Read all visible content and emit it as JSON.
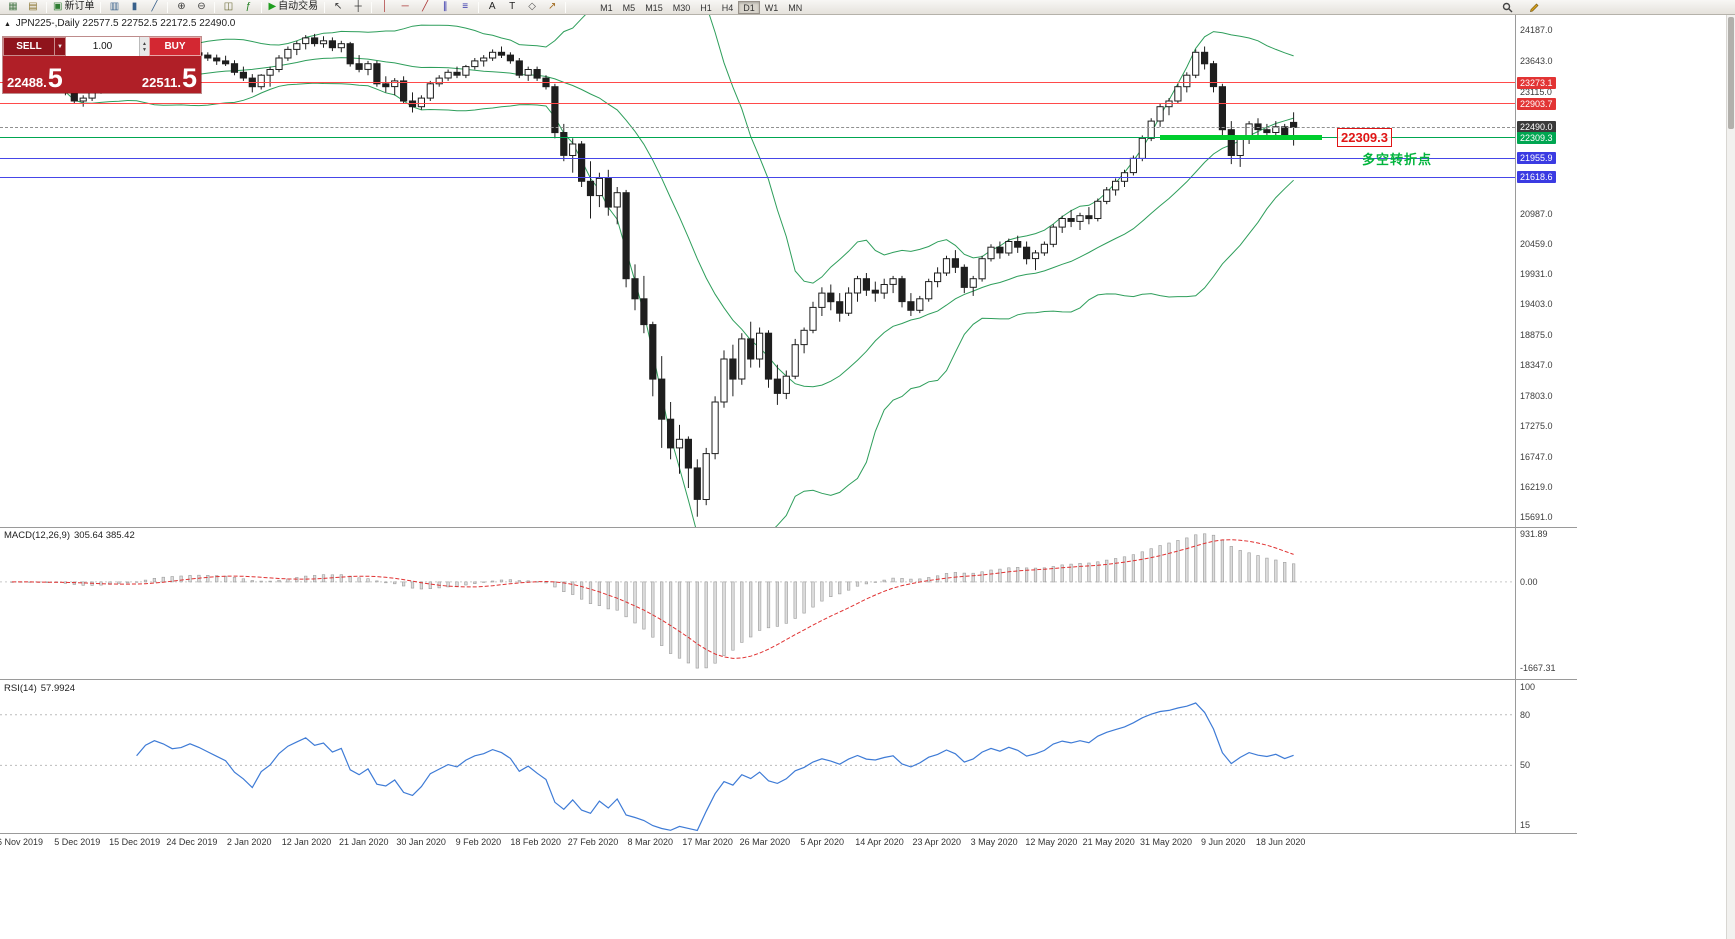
{
  "toolbar": {
    "items": [
      {
        "name": "new-chart-icon",
        "glyph": "▦",
        "color": "#4f7d4f"
      },
      {
        "name": "profiles-icon",
        "glyph": "▤",
        "color": "#8a7430"
      },
      {
        "name": "separator"
      },
      {
        "name": "new-order-icon",
        "glyph": "▣",
        "color": "#2e7d32",
        "label": "新订单"
      },
      {
        "name": "separator"
      },
      {
        "name": "bar-chart-icon",
        "glyph": "▥",
        "color": "#38608a"
      },
      {
        "name": "candle-chart-icon",
        "glyph": "▮",
        "color": "#38608a"
      },
      {
        "name": "line-chart-icon",
        "glyph": "╱",
        "color": "#38608a"
      },
      {
        "name": "separator"
      },
      {
        "name": "zoom-in-icon",
        "glyph": "⊕",
        "color": "#3c3c3c"
      },
      {
        "name": "zoom-out-icon",
        "glyph": "⊖",
        "color": "#3c3c3c"
      },
      {
        "name": "separator"
      },
      {
        "name": "tile-windows-icon",
        "glyph": "◫",
        "color": "#6a6a35"
      },
      {
        "name": "indicators-icon",
        "glyph": "ƒ",
        "color": "#1f7d1f"
      },
      {
        "name": "separator"
      },
      {
        "name": "auto-trading-icon",
        "glyph": "▶",
        "color": "#1f9d1f",
        "label": "自动交易"
      },
      {
        "name": "separator"
      },
      {
        "name": "cursor-icon",
        "glyph": "↖",
        "color": "#333333"
      },
      {
        "name": "crosshair-icon",
        "glyph": "┼",
        "color": "#333333"
      },
      {
        "name": "separator"
      },
      {
        "name": "vertical-line-icon",
        "glyph": "│",
        "color": "#aa3333"
      },
      {
        "name": "horizontal-line-icon",
        "glyph": "─",
        "color": "#aa3333"
      },
      {
        "name": "trendline-icon",
        "glyph": "╱",
        "color": "#aa3333"
      },
      {
        "name": "channel-icon",
        "glyph": "∥",
        "color": "#3333aa"
      },
      {
        "name": "fibonacci-icon",
        "glyph": "≡",
        "color": "#3333aa"
      },
      {
        "name": "separator"
      },
      {
        "name": "text-icon",
        "glyph": "A",
        "color": "#222222"
      },
      {
        "name": "label-icon",
        "glyph": "T",
        "color": "#222222"
      },
      {
        "name": "shapes-icon",
        "glyph": "◇",
        "color": "#555555"
      },
      {
        "name": "arrows-icon",
        "glyph": "↗",
        "color": "#a06a1f"
      },
      {
        "name": "separator"
      }
    ],
    "timeframes": [
      "M1",
      "M5",
      "M15",
      "M30",
      "H1",
      "H4",
      "D1",
      "W1",
      "MN"
    ],
    "active_timeframe": "D1"
  },
  "trade_panel": {
    "sell_label": "SELL",
    "buy_label": "BUY",
    "volume": "1.00",
    "sell_price_main": "22488.",
    "sell_price_big": "5",
    "buy_price_main": "22511.",
    "buy_price_big": "5"
  },
  "chart": {
    "symbol_label": "JPN225-,Daily",
    "ohlc_text": "22577.5 22752.5 22172.5 22490.0",
    "colors": {
      "bollinger": "#2e9e5b",
      "bull_candle": "#ffffff",
      "bear_candle": "#1e1e1e",
      "resistance_line": "#ff4a4a",
      "support_line": "#4646e8",
      "pivot_line": "#00a651",
      "trend_segment": "#00ce2e"
    },
    "hlines": [
      {
        "value": 23273.1,
        "color": "#ff4a4a",
        "width": 1
      },
      {
        "value": 22903.7,
        "color": "#ff4a4a",
        "width": 1
      },
      {
        "value": 22490.0,
        "color": "#909090",
        "width": 1,
        "dashed": true
      },
      {
        "value": 22309.3,
        "color": "#00a651",
        "width": 1
      },
      {
        "value": 21955.9,
        "color": "#4646e8",
        "width": 1
      },
      {
        "value": 21618.6,
        "color": "#4646e8",
        "width": 1
      }
    ],
    "trend_segment": {
      "value": 22309.3,
      "color": "#00ce2e"
    },
    "annotation": {
      "price": "22309.3",
      "note": "多空转折点"
    },
    "badges": [
      {
        "value": 23273.1,
        "label": "23273.1",
        "type": "red"
      },
      {
        "value": 22903.7,
        "label": "22903.7",
        "type": "red"
      },
      {
        "value": 22490.0,
        "label": "22490.0",
        "type": "current"
      },
      {
        "value": 22309.3,
        "label": "22309.3",
        "type": "green"
      },
      {
        "value": 21955.9,
        "label": "21955.9",
        "type": "blue"
      },
      {
        "value": 21618.6,
        "label": "21618.6",
        "type": "blue"
      }
    ],
    "price_axis_labels": [
      "24187.0",
      "23643.0",
      "23115.0",
      "20987.0",
      "20459.0",
      "19931.0",
      "19403.0",
      "18875.0",
      "18347.0",
      "17803.0",
      "17275.0",
      "16747.0",
      "16219.0",
      "15691.0"
    ],
    "date_labels": [
      "6 Nov 2019",
      "5 Dec 2019",
      "15 Dec 2019",
      "24 Dec 2019",
      "2 Jan 2020",
      "12 Jan 2020",
      "21 Jan 2020",
      "30 Jan 2020",
      "9 Feb 2020",
      "18 Feb 2020",
      "27 Feb 2020",
      "8 Mar 2020",
      "17 Mar 2020",
      "26 Mar 2020",
      "5 Apr 2020",
      "14 Apr 2020",
      "23 Apr 2020",
      "3 May 2020",
      "12 May 2020",
      "21 May 2020",
      "31 May 2020",
      "9 Jun 2020",
      "18 Jun 2020"
    ]
  },
  "macd": {
    "label": "MACD(12,26,9)",
    "values": "305.64 385.42",
    "axis": [
      {
        "v": 931.89,
        "label": "931.89"
      },
      {
        "v": 0,
        "label": "0.00"
      },
      {
        "v": -1667.31,
        "label": "-1667.31"
      }
    ]
  },
  "rsi": {
    "label": "RSI(14)",
    "value": "57.9924",
    "levels": [
      80,
      50
    ],
    "axis": [
      {
        "v": 100,
        "label": "100"
      },
      {
        "v": 80,
        "label": "80"
      },
      {
        "v": 50,
        "label": "50"
      },
      {
        "v": 15,
        "label": "15"
      }
    ]
  },
  "chart_data": {
    "type": "candlestick",
    "symbol": "JPN225-",
    "timeframe": "Daily",
    "last_ohlc": {
      "open": 22577.5,
      "high": 22752.5,
      "low": 22172.5,
      "close": 22490.0
    },
    "price_range": [
      15520,
      24450
    ],
    "indicators": {
      "bollinger": [
        20,
        2
      ],
      "macd": [
        12,
        26,
        9
      ],
      "rsi": 14
    },
    "ohlc": [
      [
        23270,
        23390,
        23200,
        23350
      ],
      [
        23350,
        23450,
        23280,
        23380
      ],
      [
        23380,
        23420,
        23250,
        23290
      ],
      [
        23290,
        23350,
        23180,
        23240
      ],
      [
        23240,
        23320,
        23150,
        23290
      ],
      [
        23290,
        23400,
        23230,
        23350
      ],
      [
        23350,
        23380,
        23050,
        23100
      ],
      [
        23100,
        23180,
        22900,
        22950
      ],
      [
        22950,
        23050,
        22850,
        23000
      ],
      [
        23000,
        23150,
        22950,
        23110
      ],
      [
        23110,
        23250,
        23080,
        23200
      ],
      [
        23200,
        23350,
        23150,
        23300
      ],
      [
        23300,
        23450,
        23250,
        23400
      ],
      [
        23400,
        23480,
        23300,
        23360
      ],
      [
        23360,
        23550,
        23320,
        23500
      ],
      [
        23500,
        23750,
        23480,
        23700
      ],
      [
        23700,
        23850,
        23650,
        23800
      ],
      [
        23800,
        23870,
        23700,
        23760
      ],
      [
        23760,
        23820,
        23650,
        23700
      ],
      [
        23700,
        23780,
        23630,
        23720
      ],
      [
        23720,
        23830,
        23680,
        23790
      ],
      [
        23790,
        23850,
        23700,
        23750
      ],
      [
        23750,
        23800,
        23650,
        23700
      ],
      [
        23700,
        23760,
        23580,
        23650
      ],
      [
        23650,
        23740,
        23560,
        23600
      ],
      [
        23600,
        23660,
        23400,
        23450
      ],
      [
        23450,
        23550,
        23300,
        23350
      ],
      [
        23350,
        23420,
        23100,
        23200
      ],
      [
        23200,
        23420,
        23150,
        23400
      ],
      [
        23400,
        23550,
        23200,
        23500
      ],
      [
        23500,
        23750,
        23450,
        23700
      ],
      [
        23700,
        23900,
        23650,
        23850
      ],
      [
        23850,
        24000,
        23750,
        23950
      ],
      [
        23950,
        24100,
        23850,
        24050
      ],
      [
        24050,
        24120,
        23900,
        23950
      ],
      [
        23950,
        24080,
        23880,
        24000
      ],
      [
        24000,
        24060,
        23820,
        23880
      ],
      [
        23880,
        24000,
        23800,
        23950
      ],
      [
        23950,
        23980,
        23550,
        23600
      ],
      [
        23600,
        23750,
        23450,
        23500
      ],
      [
        23500,
        23650,
        23400,
        23600
      ],
      [
        23600,
        23650,
        23200,
        23250
      ],
      [
        23250,
        23380,
        23100,
        23200
      ],
      [
        23200,
        23350,
        23050,
        23300
      ],
      [
        23300,
        23380,
        22900,
        22950
      ],
      [
        22950,
        23100,
        22750,
        22850
      ],
      [
        22850,
        23050,
        22800,
        23000
      ],
      [
        23000,
        23300,
        22950,
        23250
      ],
      [
        23250,
        23400,
        23200,
        23350
      ],
      [
        23350,
        23500,
        23300,
        23450
      ],
      [
        23450,
        23550,
        23350,
        23400
      ],
      [
        23400,
        23580,
        23350,
        23550
      ],
      [
        23550,
        23700,
        23500,
        23650
      ],
      [
        23650,
        23750,
        23550,
        23700
      ],
      [
        23700,
        23850,
        23650,
        23800
      ],
      [
        23800,
        23900,
        23700,
        23750
      ],
      [
        23750,
        23800,
        23600,
        23650
      ],
      [
        23650,
        23700,
        23350,
        23400
      ],
      [
        23400,
        23550,
        23300,
        23500
      ],
      [
        23500,
        23550,
        23300,
        23350
      ],
      [
        23350,
        23400,
        23150,
        23200
      ],
      [
        23200,
        23250,
        22300,
        22400
      ],
      [
        22400,
        22550,
        21900,
        22000
      ],
      [
        22000,
        22300,
        21700,
        22200
      ],
      [
        22200,
        22250,
        21450,
        21550
      ],
      [
        21550,
        21900,
        20900,
        21300
      ],
      [
        21300,
        21700,
        21100,
        21600
      ],
      [
        21600,
        21750,
        20950,
        21100
      ],
      [
        21100,
        21450,
        20800,
        21350
      ],
      [
        21350,
        21400,
        19700,
        19850
      ],
      [
        19850,
        20100,
        19300,
        19500
      ],
      [
        19500,
        19900,
        18900,
        19050
      ],
      [
        19050,
        19100,
        17800,
        18100
      ],
      [
        18100,
        18500,
        16900,
        17400
      ],
      [
        17400,
        17700,
        16700,
        16900
      ],
      [
        16900,
        17300,
        16450,
        17050
      ],
      [
        17050,
        17100,
        16200,
        16550
      ],
      [
        16550,
        16700,
        15700,
        16000
      ],
      [
        16000,
        16900,
        15900,
        16800
      ],
      [
        16800,
        17800,
        16700,
        17700
      ],
      [
        17700,
        18600,
        17600,
        18450
      ],
      [
        18450,
        18700,
        17800,
        18100
      ],
      [
        18100,
        18900,
        18000,
        18800
      ],
      [
        18800,
        19100,
        18300,
        18450
      ],
      [
        18450,
        19000,
        18300,
        18900
      ],
      [
        18900,
        18950,
        17950,
        18100
      ],
      [
        18100,
        18350,
        17650,
        17850
      ],
      [
        17850,
        18250,
        17750,
        18150
      ],
      [
        18150,
        18800,
        18100,
        18700
      ],
      [
        18700,
        19000,
        18550,
        18950
      ],
      [
        18950,
        19450,
        18900,
        19350
      ],
      [
        19350,
        19700,
        19200,
        19600
      ],
      [
        19600,
        19750,
        19300,
        19450
      ],
      [
        19450,
        19600,
        19100,
        19250
      ],
      [
        19250,
        19700,
        19200,
        19600
      ],
      [
        19600,
        19900,
        19450,
        19850
      ],
      [
        19850,
        19950,
        19550,
        19650
      ],
      [
        19650,
        19800,
        19450,
        19600
      ],
      [
        19600,
        19850,
        19500,
        19750
      ],
      [
        19750,
        19900,
        19600,
        19850
      ],
      [
        19850,
        19900,
        19350,
        19450
      ],
      [
        19450,
        19600,
        19200,
        19300
      ],
      [
        19300,
        19550,
        19250,
        19500
      ],
      [
        19500,
        19850,
        19450,
        19800
      ],
      [
        19800,
        20050,
        19700,
        19950
      ],
      [
        19950,
        20250,
        19900,
        20200
      ],
      [
        20200,
        20350,
        19950,
        20050
      ],
      [
        20050,
        20100,
        19600,
        19700
      ],
      [
        19700,
        19900,
        19550,
        19850
      ],
      [
        19850,
        20250,
        19800,
        20200
      ],
      [
        20200,
        20450,
        20150,
        20400
      ],
      [
        20400,
        20500,
        20200,
        20300
      ],
      [
        20300,
        20550,
        20250,
        20500
      ],
      [
        20500,
        20600,
        20300,
        20400
      ],
      [
        20400,
        20500,
        20100,
        20200
      ],
      [
        20200,
        20350,
        20000,
        20300
      ],
      [
        20300,
        20500,
        20250,
        20450
      ],
      [
        20450,
        20800,
        20400,
        20750
      ],
      [
        20750,
        20950,
        20650,
        20900
      ],
      [
        20900,
        21050,
        20750,
        20850
      ],
      [
        20850,
        21000,
        20700,
        20950
      ],
      [
        20950,
        21100,
        20800,
        20900
      ],
      [
        20900,
        21250,
        20850,
        21200
      ],
      [
        21200,
        21450,
        21150,
        21400
      ],
      [
        21400,
        21600,
        21300,
        21550
      ],
      [
        21550,
        21750,
        21450,
        21700
      ],
      [
        21700,
        22000,
        21650,
        21950
      ],
      [
        21950,
        22350,
        21900,
        22300
      ],
      [
        22300,
        22650,
        22250,
        22600
      ],
      [
        22600,
        22900,
        22500,
        22850
      ],
      [
        22850,
        23000,
        22700,
        22950
      ],
      [
        22950,
        23250,
        22900,
        23200
      ],
      [
        23200,
        23450,
        23100,
        23400
      ],
      [
        23400,
        23850,
        23350,
        23800
      ],
      [
        23800,
        23900,
        23500,
        23600
      ],
      [
        23600,
        23650,
        23100,
        23200
      ],
      [
        23200,
        23250,
        22300,
        22450
      ],
      [
        22450,
        22600,
        21850,
        22000
      ],
      [
        22000,
        22350,
        21800,
        22300
      ],
      [
        22300,
        22600,
        22200,
        22550
      ],
      [
        22550,
        22650,
        22350,
        22450
      ],
      [
        22450,
        22550,
        22300,
        22400
      ],
      [
        22400,
        22600,
        22350,
        22500
      ],
      [
        22500,
        22550,
        22300,
        22350
      ],
      [
        22577.5,
        22752.5,
        22172.5,
        22490.0
      ]
    ]
  }
}
